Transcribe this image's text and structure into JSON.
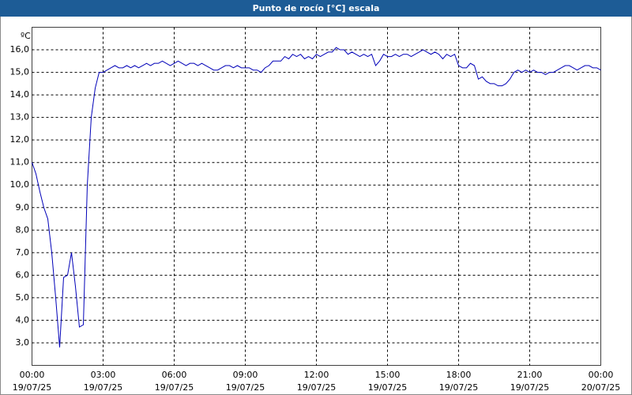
{
  "chart_data": {
    "type": "line",
    "title": "Punto de rocío [°C] escala",
    "y_label": "ºC",
    "xlim": [
      0,
      1440
    ],
    "ylim": [
      2,
      17
    ],
    "grid": true,
    "xticks": [
      {
        "value": 0,
        "label": "00:00",
        "date": "19/07/25"
      },
      {
        "value": 180,
        "label": "03:00",
        "date": "19/07/25"
      },
      {
        "value": 360,
        "label": "06:00",
        "date": "19/07/25"
      },
      {
        "value": 540,
        "label": "09:00",
        "date": "19/07/25"
      },
      {
        "value": 720,
        "label": "12:00",
        "date": "19/07/25"
      },
      {
        "value": 900,
        "label": "15:00",
        "date": "19/07/25"
      },
      {
        "value": 1080,
        "label": "18:00",
        "date": "19/07/25"
      },
      {
        "value": 1260,
        "label": "21:00",
        "date": "19/07/25"
      },
      {
        "value": 1440,
        "label": "00:00",
        "date": "20/07/25"
      }
    ],
    "yticks": [
      {
        "value": 3,
        "label": "3,0"
      },
      {
        "value": 4,
        "label": "4,0"
      },
      {
        "value": 5,
        "label": "5,0"
      },
      {
        "value": 6,
        "label": "6,0"
      },
      {
        "value": 7,
        "label": "7,0"
      },
      {
        "value": 8,
        "label": "8,0"
      },
      {
        "value": 9,
        "label": "9,0"
      },
      {
        "value": 10,
        "label": "10,0"
      },
      {
        "value": 11,
        "label": "11,0"
      },
      {
        "value": 12,
        "label": "12,0"
      },
      {
        "value": 13,
        "label": "13,0"
      },
      {
        "value": 14,
        "label": "14,0"
      },
      {
        "value": 15,
        "label": "15,0"
      },
      {
        "value": 16,
        "label": "16,0"
      }
    ],
    "x": [
      0,
      10,
      20,
      30,
      40,
      50,
      60,
      70,
      80,
      90,
      100,
      110,
      120,
      130,
      140,
      150,
      160,
      170,
      180,
      190,
      200,
      210,
      220,
      230,
      240,
      250,
      260,
      270,
      280,
      290,
      300,
      310,
      320,
      330,
      340,
      350,
      360,
      370,
      380,
      390,
      400,
      410,
      420,
      430,
      440,
      450,
      460,
      470,
      480,
      490,
      500,
      510,
      520,
      530,
      540,
      550,
      560,
      570,
      580,
      590,
      600,
      610,
      620,
      630,
      640,
      650,
      660,
      670,
      680,
      690,
      700,
      710,
      720,
      730,
      740,
      750,
      760,
      770,
      780,
      790,
      800,
      810,
      820,
      830,
      840,
      850,
      860,
      870,
      880,
      890,
      900,
      910,
      920,
      930,
      940,
      950,
      960,
      970,
      980,
      990,
      1000,
      1010,
      1020,
      1030,
      1040,
      1050,
      1060,
      1070,
      1080,
      1090,
      1100,
      1110,
      1120,
      1130,
      1140,
      1150,
      1160,
      1170,
      1180,
      1190,
      1200,
      1210,
      1220,
      1230,
      1240,
      1250,
      1260,
      1270,
      1280,
      1290,
      1300,
      1310,
      1320,
      1330,
      1340,
      1350,
      1360,
      1370,
      1380,
      1390,
      1400,
      1410,
      1420,
      1430,
      1440
    ],
    "series": [
      {
        "color": "#0000b8",
        "values": [
          11.0,
          10.5,
          9.7,
          9.0,
          8.5,
          7.0,
          5.0,
          2.8,
          5.9,
          6.0,
          7.0,
          5.5,
          3.7,
          3.8,
          10.0,
          13.0,
          14.3,
          15.0,
          15.0,
          15.1,
          15.2,
          15.3,
          15.2,
          15.2,
          15.3,
          15.2,
          15.3,
          15.2,
          15.3,
          15.4,
          15.3,
          15.4,
          15.4,
          15.5,
          15.4,
          15.3,
          15.4,
          15.5,
          15.4,
          15.3,
          15.4,
          15.4,
          15.3,
          15.4,
          15.3,
          15.2,
          15.1,
          15.1,
          15.2,
          15.3,
          15.3,
          15.2,
          15.3,
          15.2,
          15.2,
          15.2,
          15.1,
          15.1,
          15.0,
          15.2,
          15.3,
          15.5,
          15.5,
          15.5,
          15.7,
          15.6,
          15.8,
          15.7,
          15.8,
          15.6,
          15.7,
          15.6,
          15.8,
          15.7,
          15.8,
          15.9,
          15.9,
          16.1,
          16.0,
          16.0,
          15.8,
          15.9,
          15.8,
          15.7,
          15.8,
          15.7,
          15.8,
          15.3,
          15.5,
          15.8,
          15.7,
          15.7,
          15.8,
          15.7,
          15.8,
          15.8,
          15.7,
          15.8,
          15.9,
          16.0,
          15.9,
          15.8,
          15.9,
          15.8,
          15.6,
          15.8,
          15.7,
          15.8,
          15.3,
          15.2,
          15.2,
          15.4,
          15.3,
          14.7,
          14.8,
          14.6,
          14.5,
          14.5,
          14.4,
          14.4,
          14.5,
          14.7,
          15.0,
          15.1,
          15.0,
          15.1,
          15.0,
          15.1,
          15.0,
          15.0,
          14.9,
          15.0,
          15.0,
          15.1,
          15.2,
          15.3,
          15.3,
          15.2,
          15.1,
          15.2,
          15.3,
          15.3,
          15.2,
          15.2,
          15.1
        ]
      }
    ]
  }
}
